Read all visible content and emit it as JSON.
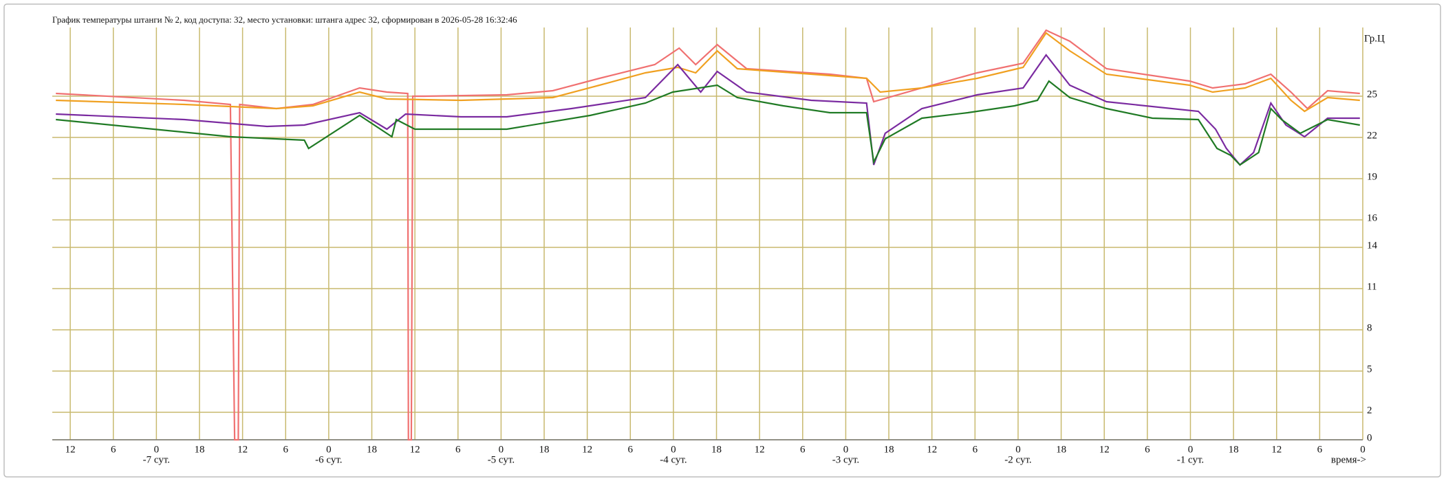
{
  "chart_data": {
    "type": "line",
    "title": "График температуры штанги № 2, код доступа: 32, место установки: штанга адрес 32, сформирован в 2026-05-28 16:32:46",
    "y_label": "Гр.Ц",
    "x_label": "время->",
    "xlim": [
      -182.5,
      0
    ],
    "ylim": [
      0,
      30
    ],
    "grid": true,
    "grid_color": "#c8b96e",
    "yticks": [
      0,
      2,
      5,
      8,
      11,
      14,
      16,
      19,
      22,
      25
    ],
    "xticks": [
      {
        "value": -180,
        "label": "12"
      },
      {
        "value": -174,
        "label": "6"
      },
      {
        "value": -168,
        "label": "0"
      },
      {
        "value": -162,
        "label": "18"
      },
      {
        "value": -156,
        "label": "12"
      },
      {
        "value": -150,
        "label": "6"
      },
      {
        "value": -144,
        "label": "0"
      },
      {
        "value": -138,
        "label": "18"
      },
      {
        "value": -132,
        "label": "12"
      },
      {
        "value": -126,
        "label": "6"
      },
      {
        "value": -120,
        "label": "0"
      },
      {
        "value": -114,
        "label": "18"
      },
      {
        "value": -108,
        "label": "12"
      },
      {
        "value": -102,
        "label": "6"
      },
      {
        "value": -96,
        "label": "0"
      },
      {
        "value": -90,
        "label": "18"
      },
      {
        "value": -84,
        "label": "12"
      },
      {
        "value": -78,
        "label": "6"
      },
      {
        "value": -72,
        "label": "0"
      },
      {
        "value": -66,
        "label": "18"
      },
      {
        "value": -60,
        "label": "12"
      },
      {
        "value": -54,
        "label": "6"
      },
      {
        "value": -48,
        "label": "0"
      },
      {
        "value": -42,
        "label": "18"
      },
      {
        "value": -36,
        "label": "12"
      },
      {
        "value": -30,
        "label": "6"
      },
      {
        "value": -24,
        "label": "0"
      },
      {
        "value": -18,
        "label": "18"
      },
      {
        "value": -12,
        "label": "12"
      },
      {
        "value": -6,
        "label": "6"
      },
      0
    ],
    "day_labels": [
      {
        "value": -168,
        "label": "-7 сут."
      },
      {
        "value": -144,
        "label": "-6 сут."
      },
      {
        "value": -120,
        "label": "-5 сут."
      },
      {
        "value": -96,
        "label": "-4 сут."
      },
      {
        "value": -72,
        "label": "-3 сут."
      },
      {
        "value": -48,
        "label": "-2 сут."
      },
      {
        "value": -24,
        "label": "-1 сут."
      }
    ],
    "series": [
      {
        "color": "#f07070",
        "x": [
          -182,
          -164.1,
          -157.7,
          -157.1,
          -156.6,
          -156.4,
          -151.3,
          -146.2,
          -139.7,
          -135.9,
          -133.0,
          -132.9,
          -132.5,
          -132.3,
          -130.7,
          -119.2,
          -112.8,
          -106.3,
          -98.6,
          -95.2,
          -92.9,
          -89.9,
          -85.8,
          -74.2,
          -69.1,
          -68.1,
          -61.4,
          -53.7,
          -47.3,
          -44.1,
          -40.8,
          -35.7,
          -24.1,
          -20.9,
          -16.4,
          -12.8,
          -10.0,
          -7.7,
          -4.9,
          -0.4
        ],
        "values": [
          25.2,
          24.7,
          24.4,
          0,
          0,
          24.4,
          24.1,
          24.4,
          25.6,
          25.3,
          25.2,
          0,
          0,
          25.0,
          25.0,
          25.1,
          25.4,
          26.3,
          27.3,
          28.5,
          27.3,
          28.75,
          27.0,
          26.6,
          26.3,
          24.6,
          25.6,
          26.7,
          27.4,
          29.8,
          29.0,
          27.0,
          26.1,
          25.6,
          25.9,
          26.6,
          25.3,
          24.1,
          25.4,
          25.2
        ]
      },
      {
        "color": "#f0a020",
        "x": [
          -182,
          -164.1,
          -151.3,
          -146.2,
          -139.7,
          -135.9,
          -125.6,
          -112.8,
          -106.3,
          -99.9,
          -95.4,
          -92.9,
          -89.9,
          -87.1,
          -74.2,
          -69.1,
          -67.2,
          -61.4,
          -53.7,
          -47.3,
          -44.1,
          -40.8,
          -35.7,
          -24.1,
          -20.9,
          -16.4,
          -12.8,
          -10.0,
          -8.1,
          -4.9,
          -0.4
        ],
        "values": [
          24.7,
          24.4,
          24.1,
          24.3,
          25.3,
          24.8,
          24.7,
          24.9,
          25.8,
          26.7,
          27.1,
          26.7,
          28.3,
          27.0,
          26.5,
          26.3,
          25.3,
          25.6,
          26.3,
          27.1,
          29.6,
          28.3,
          26.6,
          25.8,
          25.3,
          25.6,
          26.3,
          24.7,
          23.9,
          24.9,
          24.7
        ]
      },
      {
        "color": "#7a2aa0",
        "x": [
          -182,
          -164.1,
          -152.6,
          -147.4,
          -139.7,
          -135.9,
          -133.3,
          -125.6,
          -119.2,
          -110.2,
          -99.9,
          -95.4,
          -92.2,
          -89.9,
          -85.8,
          -76.8,
          -69.1,
          -68.1,
          -66.5,
          -61.4,
          -53.7,
          -47.3,
          -44.1,
          -40.8,
          -35.7,
          -22.9,
          -20.5,
          -19.0,
          -17.1,
          -15.2,
          -12.8,
          -10.7,
          -8.1,
          -4.9,
          -0.4
        ],
        "values": [
          23.7,
          23.3,
          22.8,
          22.9,
          23.8,
          22.6,
          23.7,
          23.5,
          23.5,
          24.1,
          24.9,
          27.3,
          25.3,
          26.8,
          25.3,
          24.7,
          24.5,
          20.0,
          22.3,
          24.1,
          25.1,
          25.6,
          28.0,
          25.8,
          24.6,
          23.9,
          22.6,
          21.2,
          20.0,
          20.9,
          24.5,
          22.9,
          22.05,
          23.4,
          23.4
        ]
      },
      {
        "color": "#1f7a24",
        "x": [
          -182,
          -157.7,
          -147.4,
          -146.8,
          -139.7,
          -135.2,
          -134.6,
          -132.0,
          -119.2,
          -107.6,
          -99.9,
          -96.1,
          -89.9,
          -87.1,
          -80.7,
          -74.2,
          -69.1,
          -68.1,
          -66.5,
          -61.4,
          -55.0,
          -48.5,
          -45.3,
          -43.7,
          -40.8,
          -35.7,
          -29.3,
          -22.9,
          -20.3,
          -18.4,
          -17.1,
          -14.5,
          -12.8,
          -11.3,
          -8.7,
          -4.9,
          -0.4
        ],
        "values": [
          23.3,
          22.05,
          21.8,
          21.2,
          23.6,
          22.05,
          23.3,
          22.6,
          22.6,
          23.6,
          24.5,
          25.3,
          25.8,
          24.9,
          24.3,
          23.8,
          23.8,
          20.2,
          21.9,
          23.4,
          23.8,
          24.3,
          24.7,
          26.1,
          24.9,
          24.1,
          23.4,
          23.3,
          21.2,
          20.7,
          20.0,
          20.9,
          24.1,
          23.3,
          22.3,
          23.3,
          22.9
        ]
      }
    ]
  }
}
